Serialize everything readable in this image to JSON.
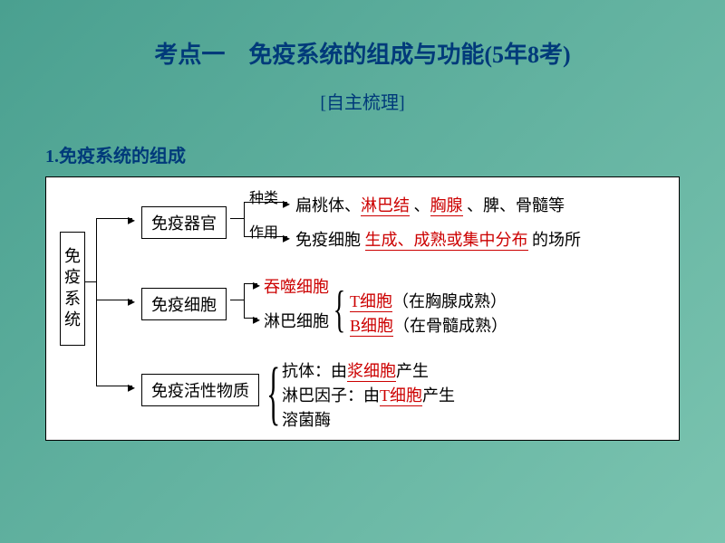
{
  "page": {
    "background": "linear-gradient(135deg, #4aa090 0%, #7bc4b0 100%)",
    "diagram_bg": "#ffffff"
  },
  "title": {
    "text": "考点一　免疫系统的组成与功能(5年8考)",
    "color": "#003a7a",
    "fontsize": 26
  },
  "subtitle": {
    "text": "[自主梳理]",
    "color": "#003a7a",
    "fontsize": 20
  },
  "section_heading": {
    "text": "1.免疫系统的组成",
    "color": "#003a7a",
    "fontsize": 20
  },
  "colors": {
    "text_black": "#000000",
    "text_red": "#cc0000",
    "heading_blue": "#003a7a",
    "border": "#000000"
  },
  "diagram": {
    "root": "免疫系统",
    "branches": [
      {
        "label": "免疫器官",
        "sublabels": {
          "top": "种类",
          "bottom": "作用"
        },
        "lines": [
          {
            "parts": [
              {
                "t": "扁桃体、",
                "red": false
              },
              {
                "t": "淋巴结",
                "red": true,
                "ul": true
              },
              {
                "t": " 、",
                "red": false
              },
              {
                "t": "胸腺",
                "red": true,
                "ul": true
              },
              {
                "t": " 、脾、骨髓等",
                "red": false
              }
            ]
          },
          {
            "parts": [
              {
                "t": "免疫细胞 ",
                "red": false
              },
              {
                "t": "生成、成熟或集中分布",
                "red": true,
                "ul": true
              },
              {
                "t": " 的场所",
                "red": false
              }
            ]
          }
        ]
      },
      {
        "label": "免疫细胞",
        "lines": [
          {
            "parts": [
              {
                "t": "吞噬细胞",
                "red": true
              }
            ]
          },
          {
            "parts": [
              {
                "t": "淋巴细胞",
                "red": false
              }
            ]
          }
        ],
        "subitems": [
          {
            "parts": [
              {
                "t": "T细胞",
                "red": true,
                "ul": true
              },
              {
                "t": "（在胸腺成熟）",
                "red": false
              }
            ]
          },
          {
            "parts": [
              {
                "t": "B细胞",
                "red": true,
                "ul": true
              },
              {
                "t": "（在骨髓成熟）",
                "red": false
              }
            ]
          }
        ]
      },
      {
        "label": "免疫活性物质",
        "lines": [
          {
            "parts": [
              {
                "t": "抗体：由",
                "red": false
              },
              {
                "t": "浆细胞",
                "red": true,
                "ul": true
              },
              {
                "t": "产生",
                "red": false
              }
            ]
          },
          {
            "parts": [
              {
                "t": "淋巴因子：由",
                "red": false
              },
              {
                "t": "T细胞",
                "red": true,
                "ul": true
              },
              {
                "t": "产生",
                "red": false
              }
            ]
          },
          {
            "parts": [
              {
                "t": "溶菌酶",
                "red": false
              }
            ]
          }
        ]
      }
    ]
  }
}
